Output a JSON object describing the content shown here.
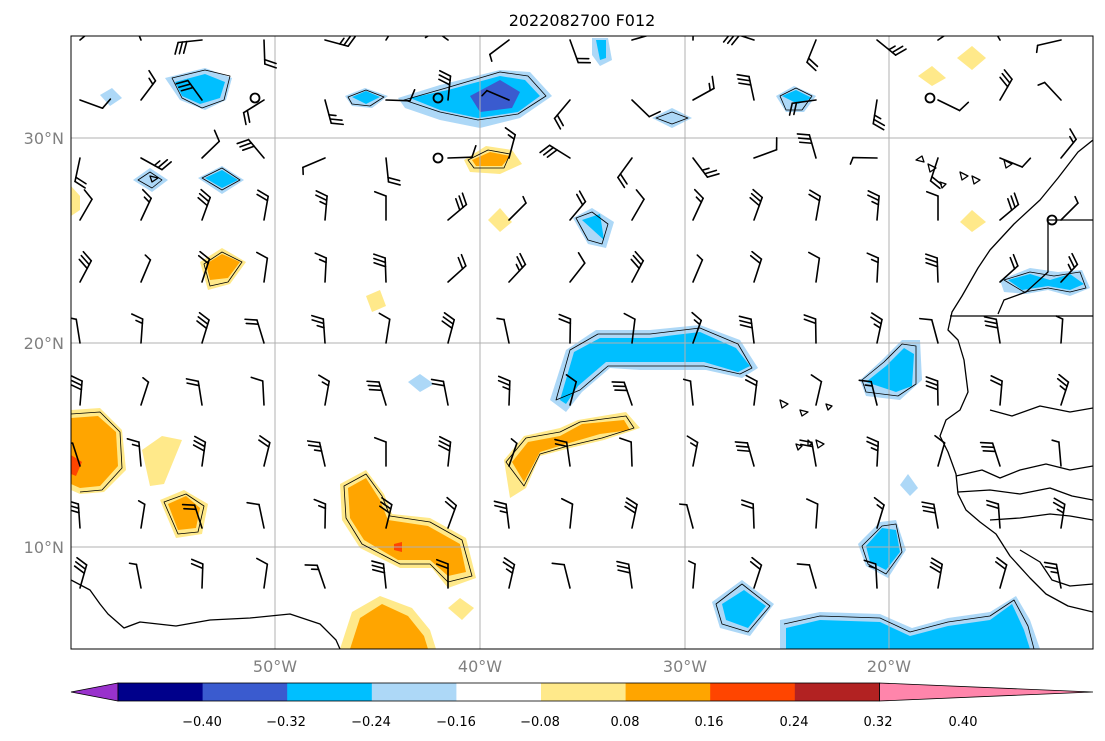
{
  "title": "2022082700 F012",
  "map": {
    "lon_range": [
      -60,
      -10
    ],
    "lat_range": [
      5,
      35
    ],
    "lat_labels": [
      "30°N",
      "20°N",
      "10°N"
    ],
    "lon_labels": [
      "50°W",
      "40°W",
      "30°W",
      "20°W"
    ],
    "grid": true,
    "wind_barbs": true
  },
  "colorbar": {
    "ticks": [
      "−0.40",
      "−0.32",
      "−0.24",
      "−0.16",
      "−0.08",
      "0.08",
      "0.16",
      "0.24",
      "0.32",
      "0.40"
    ],
    "colors": [
      "#9932cc",
      "#00008b",
      "#3a5bcf",
      "#00bfff",
      "#add8f7",
      "#ffffff",
      "#ffe98a",
      "#ffa500",
      "#ff4500",
      "#b22222",
      "#ff85ab"
    ],
    "extend": "both"
  }
}
